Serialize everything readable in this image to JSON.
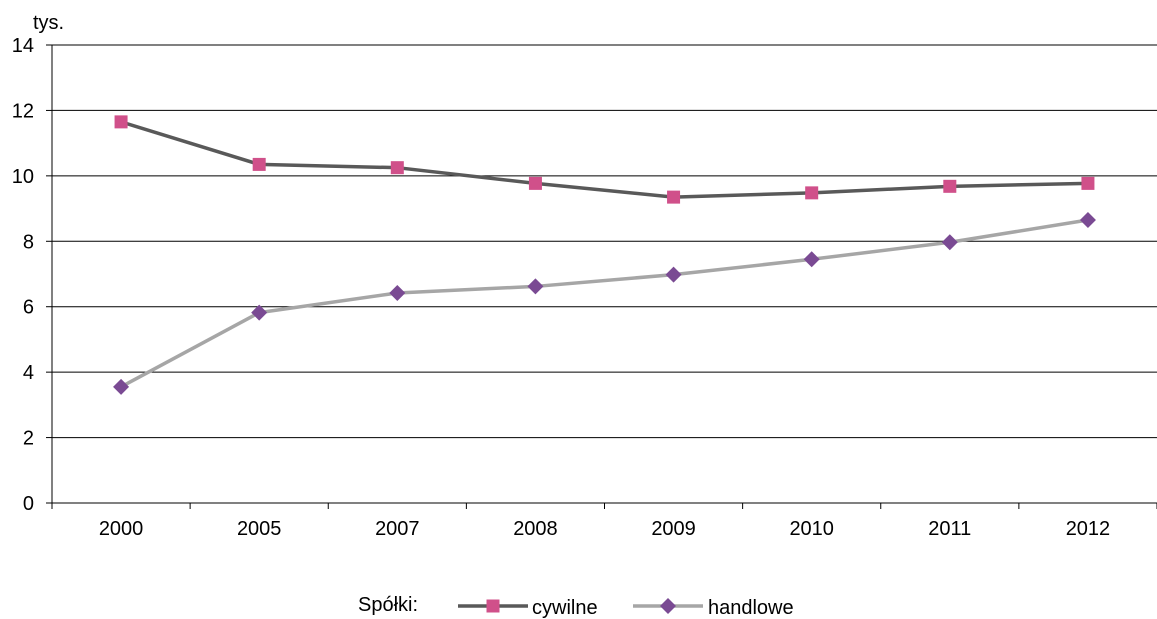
{
  "chart_data": {
    "type": "line",
    "ylabel": "tys.",
    "categories": [
      "2000",
      "2005",
      "2007",
      "2008",
      "2009",
      "2010",
      "2011",
      "2012"
    ],
    "ylim": [
      0,
      14
    ],
    "yticks": [
      0,
      2,
      4,
      6,
      8,
      10,
      12,
      14
    ],
    "grid": true,
    "legend": {
      "position": "bottom",
      "prefix": "Spółki:"
    },
    "series": [
      {
        "name": "cywilne",
        "values": [
          11.65,
          10.35,
          10.25,
          9.77,
          9.35,
          9.48,
          9.68,
          9.77
        ],
        "line_color": "#595959",
        "marker": "square",
        "marker_color": "#d0508a"
      },
      {
        "name": "handlowe",
        "values": [
          3.55,
          5.82,
          6.42,
          6.62,
          6.98,
          7.45,
          7.97,
          8.65
        ],
        "line_color": "#a6a6a6",
        "marker": "diamond",
        "marker_color": "#7a4a93"
      }
    ]
  }
}
